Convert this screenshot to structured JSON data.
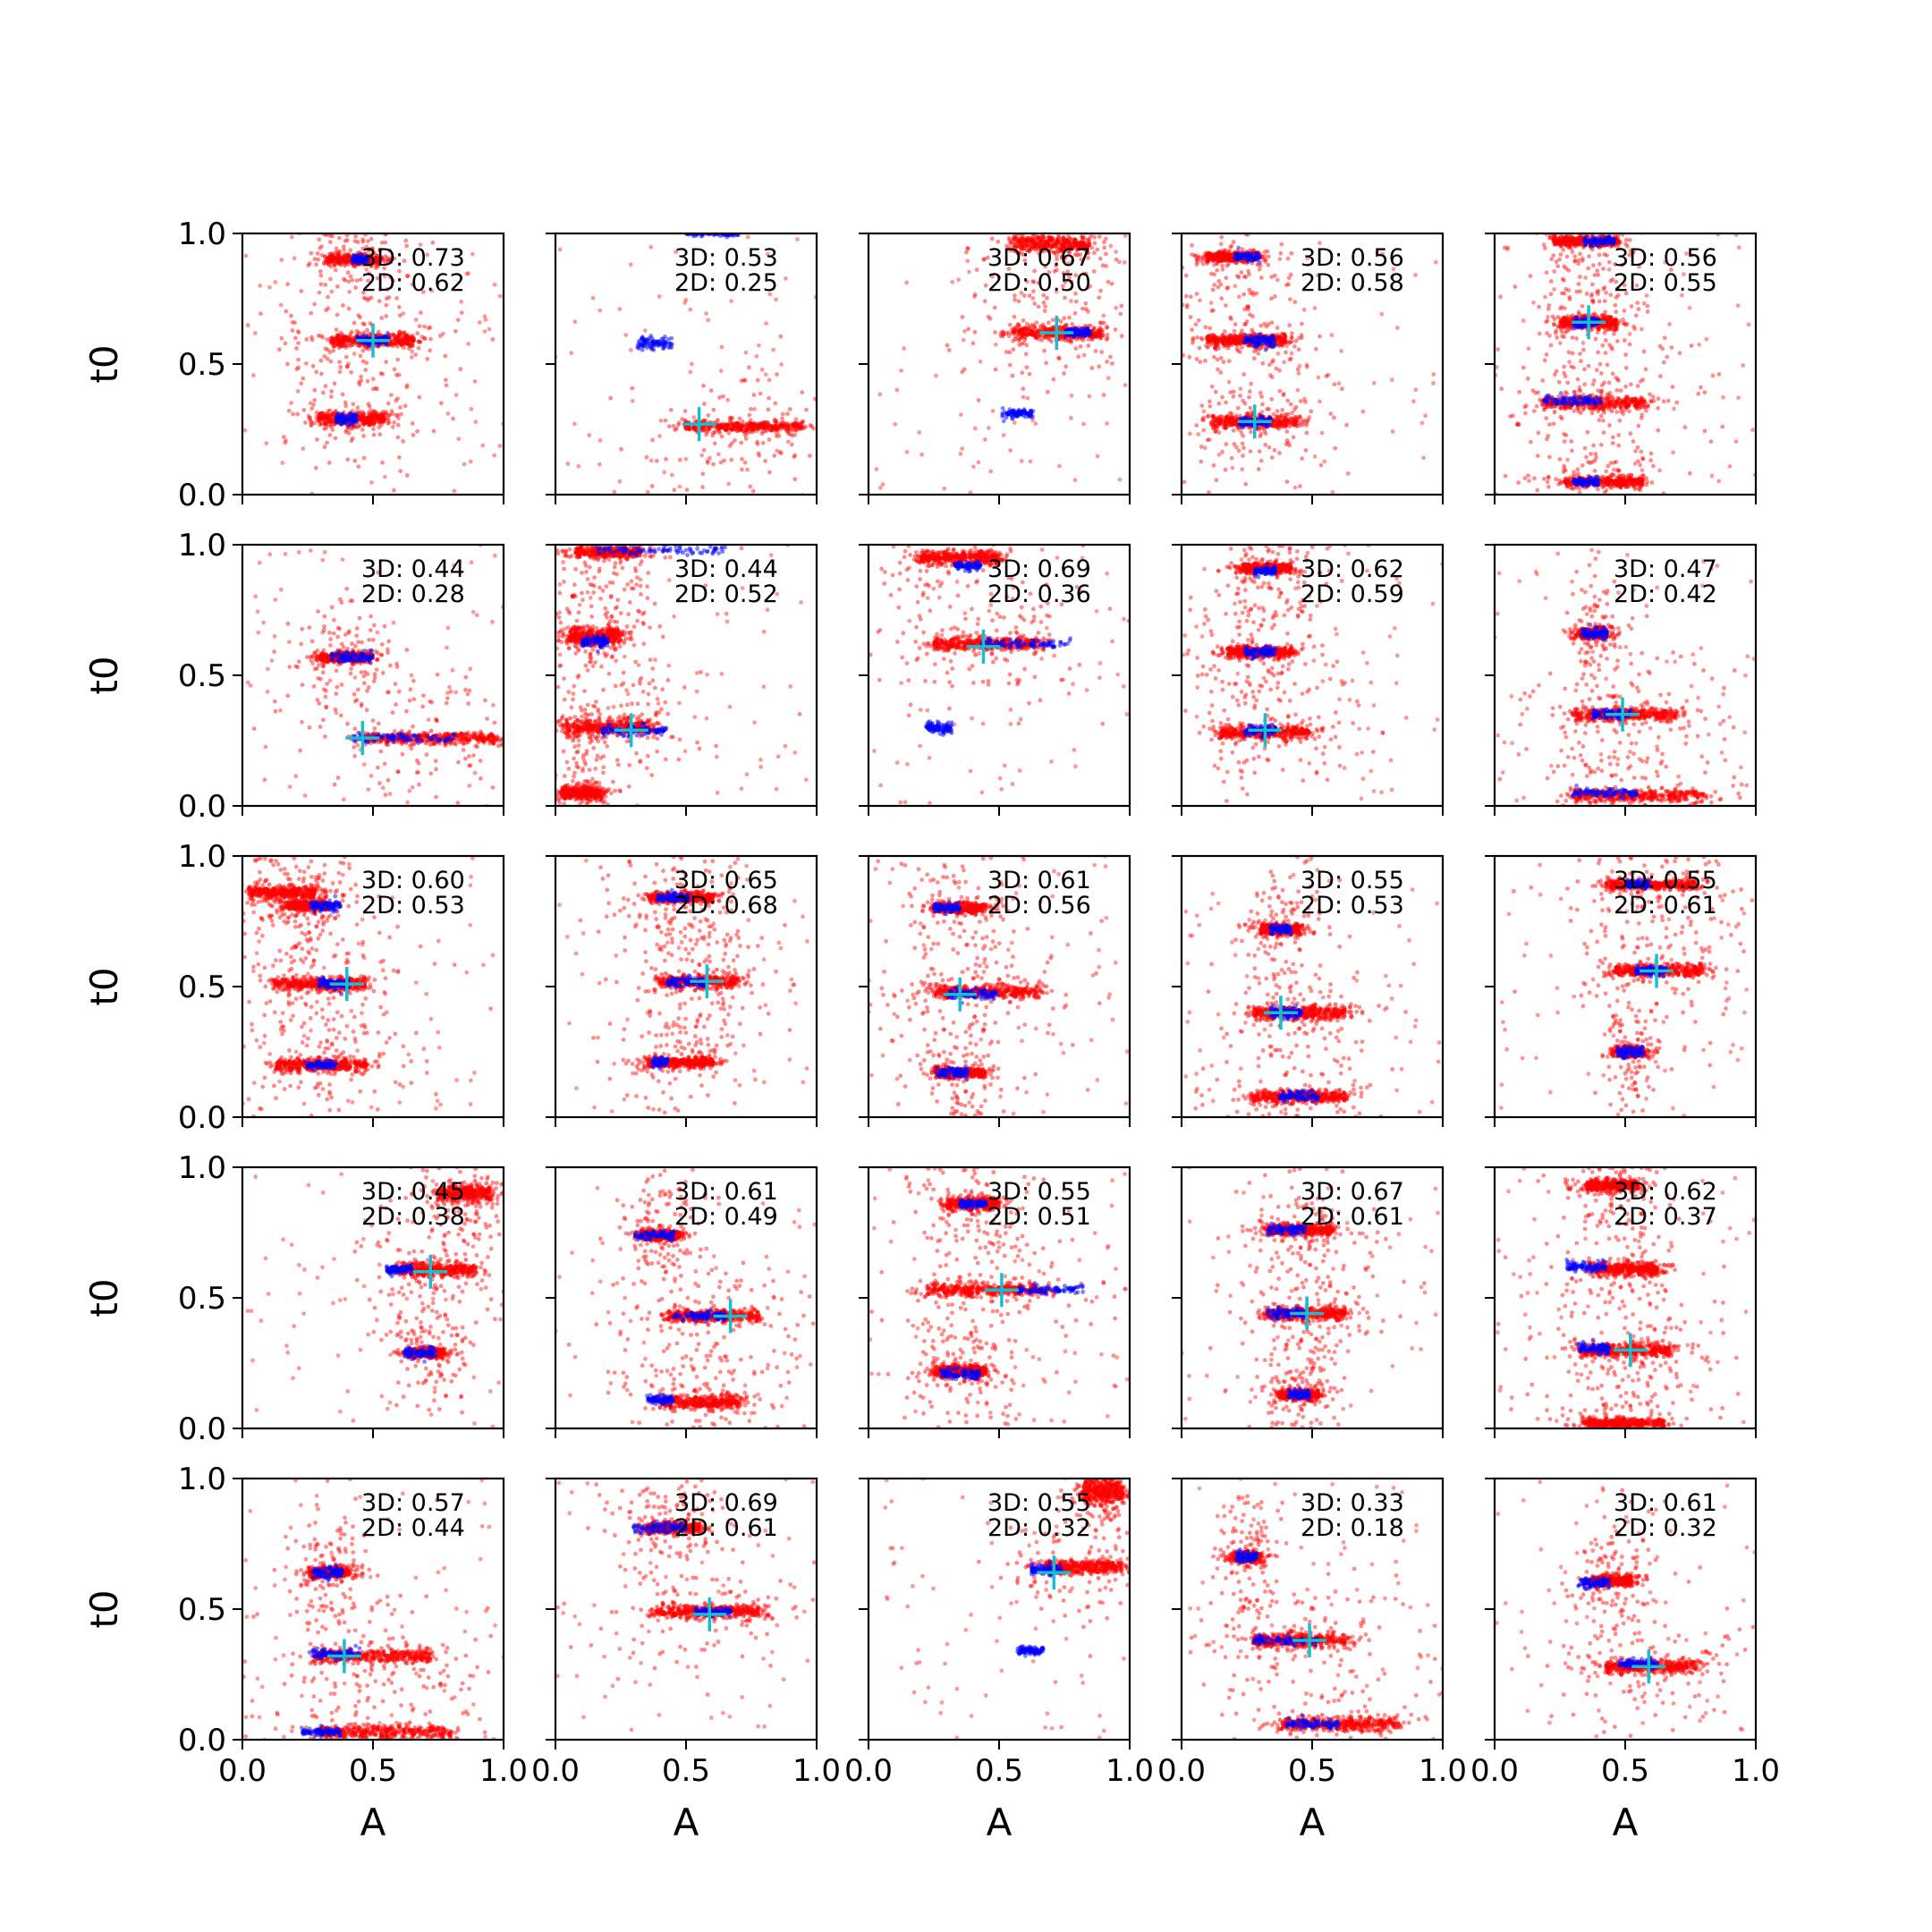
{
  "chart_data": {
    "type": "scatter",
    "grid": false,
    "rows": 5,
    "cols": 5,
    "xlim": [
      0,
      1
    ],
    "ylim": [
      0,
      1
    ],
    "xlabel": "A",
    "ylabel": "t0",
    "xticks": [
      "0.0",
      "0.5",
      "1.0"
    ],
    "yticks": [
      "0.0",
      "0.5",
      "1.0"
    ],
    "colors": {
      "samples": "#ff0000",
      "chain": "#0000ff",
      "truth": "#17becf"
    },
    "panels": [
      {
        "l3": "3D: 0.73",
        "l2": "2D: 0.62",
        "truth": [
          0.5,
          0.59
        ],
        "clusters": [
          [
            0.5,
            0.59,
            0.32,
            0.015
          ],
          [
            0.42,
            0.29,
            0.26,
            0.015
          ],
          [
            0.43,
            0.9,
            0.2,
            0.012
          ]
        ],
        "blue": [
          [
            0.5,
            0.59,
            0.12,
            0.01
          ],
          [
            0.4,
            0.29,
            0.08,
            0.01
          ],
          [
            0.45,
            0.9,
            0.06,
            0.008
          ]
        ]
      },
      {
        "l3": "3D: 0.53",
        "l2": "2D: 0.25",
        "truth": [
          0.55,
          0.27
        ],
        "clusters": [
          [
            0.72,
            0.26,
            0.45,
            0.012
          ]
        ],
        "blue": [
          [
            0.38,
            0.58,
            0.14,
            0.012
          ],
          [
            0.6,
            1.0,
            0.2,
            0.005
          ]
        ]
      },
      {
        "l3": "3D: 0.67",
        "l2": "2D: 0.50",
        "truth": [
          0.72,
          0.62
        ],
        "clusters": [
          [
            0.72,
            0.62,
            0.35,
            0.015
          ],
          [
            0.7,
            0.96,
            0.3,
            0.02
          ]
        ],
        "blue": [
          [
            0.57,
            0.31,
            0.12,
            0.008
          ],
          [
            0.8,
            0.62,
            0.1,
            0.008
          ]
        ]
      },
      {
        "l3": "3D: 0.56",
        "l2": "2D: 0.58",
        "truth": [
          0.28,
          0.28
        ],
        "clusters": [
          [
            0.28,
            0.28,
            0.32,
            0.015
          ],
          [
            0.25,
            0.59,
            0.3,
            0.015
          ],
          [
            0.2,
            0.91,
            0.2,
            0.012
          ]
        ],
        "blue": [
          [
            0.28,
            0.28,
            0.12,
            0.01
          ],
          [
            0.3,
            0.59,
            0.12,
            0.01
          ],
          [
            0.25,
            0.91,
            0.1,
            0.008
          ]
        ]
      },
      {
        "l3": "3D: 0.56",
        "l2": "2D: 0.55",
        "truth": [
          0.36,
          0.66
        ],
        "clusters": [
          [
            0.36,
            0.66,
            0.22,
            0.015
          ],
          [
            0.38,
            0.35,
            0.4,
            0.015
          ],
          [
            0.35,
            0.97,
            0.25,
            0.012
          ],
          [
            0.42,
            0.05,
            0.3,
            0.012
          ]
        ],
        "blue": [
          [
            0.35,
            0.66,
            0.1,
            0.01
          ],
          [
            0.3,
            0.36,
            0.22,
            0.01
          ],
          [
            0.4,
            0.97,
            0.12,
            0.008
          ],
          [
            0.35,
            0.05,
            0.1,
            0.008
          ]
        ]
      },
      {
        "l3": "3D: 0.44",
        "l2": "2D: 0.28",
        "truth": [
          0.46,
          0.26
        ],
        "clusters": [
          [
            0.72,
            0.26,
            0.5,
            0.012
          ],
          [
            0.4,
            0.57,
            0.2,
            0.012
          ]
        ],
        "blue": [
          [
            0.42,
            0.57,
            0.16,
            0.01
          ],
          [
            0.62,
            0.26,
            0.4,
            0.008
          ]
        ]
      },
      {
        "l3": "3D: 0.44",
        "l2": "2D: 0.52",
        "truth": [
          0.29,
          0.29
        ],
        "clusters": [
          [
            0.2,
            0.3,
            0.35,
            0.02
          ],
          [
            0.15,
            0.65,
            0.2,
            0.02
          ],
          [
            0.2,
            0.97,
            0.25,
            0.012
          ],
          [
            0.1,
            0.05,
            0.15,
            0.015
          ]
        ],
        "blue": [
          [
            0.3,
            0.29,
            0.25,
            0.012
          ],
          [
            0.15,
            0.63,
            0.1,
            0.012
          ],
          [
            0.4,
            0.98,
            0.5,
            0.01
          ]
        ]
      },
      {
        "l3": "3D: 0.69",
        "l2": "2D: 0.36",
        "truth": [
          0.44,
          0.61
        ],
        "clusters": [
          [
            0.45,
            0.62,
            0.4,
            0.015
          ],
          [
            0.35,
            0.95,
            0.3,
            0.015
          ]
        ],
        "blue": [
          [
            0.6,
            0.62,
            0.35,
            0.008
          ],
          [
            0.27,
            0.3,
            0.1,
            0.01
          ],
          [
            0.38,
            0.92,
            0.1,
            0.008
          ]
        ]
      },
      {
        "l3": "3D: 0.62",
        "l2": "2D: 0.59",
        "truth": [
          0.32,
          0.29
        ],
        "clusters": [
          [
            0.32,
            0.28,
            0.35,
            0.015
          ],
          [
            0.3,
            0.59,
            0.25,
            0.012
          ],
          [
            0.32,
            0.91,
            0.2,
            0.012
          ]
        ],
        "blue": [
          [
            0.3,
            0.29,
            0.12,
            0.01
          ],
          [
            0.3,
            0.59,
            0.12,
            0.01
          ],
          [
            0.32,
            0.9,
            0.08,
            0.008
          ]
        ]
      },
      {
        "l3": "3D: 0.47",
        "l2": "2D: 0.42",
        "truth": [
          0.49,
          0.35
        ],
        "clusters": [
          [
            0.5,
            0.35,
            0.4,
            0.015
          ],
          [
            0.55,
            0.04,
            0.5,
            0.015
          ],
          [
            0.38,
            0.66,
            0.1,
            0.012
          ]
        ],
        "blue": [
          [
            0.45,
            0.35,
            0.15,
            0.01
          ],
          [
            0.38,
            0.66,
            0.1,
            0.01
          ],
          [
            0.42,
            0.05,
            0.25,
            0.008
          ]
        ]
      },
      {
        "l3": "3D: 0.60",
        "l2": "2D: 0.53",
        "truth": [
          0.4,
          0.51
        ],
        "clusters": [
          [
            0.3,
            0.51,
            0.35,
            0.015
          ],
          [
            0.3,
            0.2,
            0.35,
            0.015
          ],
          [
            0.15,
            0.86,
            0.25,
            0.015
          ],
          [
            0.25,
            0.81,
            0.15,
            0.01
          ]
        ],
        "blue": [
          [
            0.35,
            0.51,
            0.12,
            0.01
          ],
          [
            0.32,
            0.81,
            0.12,
            0.01
          ],
          [
            0.3,
            0.2,
            0.12,
            0.008
          ]
        ]
      },
      {
        "l3": "3D: 0.65",
        "l2": "2D: 0.68",
        "truth": [
          0.58,
          0.52
        ],
        "clusters": [
          [
            0.55,
            0.52,
            0.3,
            0.015
          ],
          [
            0.48,
            0.21,
            0.25,
            0.012
          ],
          [
            0.48,
            0.84,
            0.25,
            0.012
          ]
        ],
        "blue": [
          [
            0.5,
            0.52,
            0.15,
            0.01
          ],
          [
            0.45,
            0.84,
            0.12,
            0.01
          ],
          [
            0.4,
            0.21,
            0.06,
            0.008
          ]
        ]
      },
      {
        "l3": "3D: 0.61",
        "l2": "2D: 0.56",
        "truth": [
          0.35,
          0.47
        ],
        "clusters": [
          [
            0.45,
            0.48,
            0.4,
            0.015
          ],
          [
            0.35,
            0.17,
            0.2,
            0.012
          ],
          [
            0.35,
            0.8,
            0.2,
            0.012
          ]
        ],
        "blue": [
          [
            0.4,
            0.47,
            0.2,
            0.01
          ],
          [
            0.32,
            0.17,
            0.12,
            0.01
          ],
          [
            0.3,
            0.8,
            0.1,
            0.008
          ]
        ]
      },
      {
        "l3": "3D: 0.55",
        "l2": "2D: 0.53",
        "truth": [
          0.38,
          0.4
        ],
        "clusters": [
          [
            0.45,
            0.4,
            0.35,
            0.015
          ],
          [
            0.45,
            0.08,
            0.35,
            0.015
          ],
          [
            0.38,
            0.72,
            0.15,
            0.012
          ]
        ],
        "blue": [
          [
            0.4,
            0.4,
            0.12,
            0.01
          ],
          [
            0.45,
            0.08,
            0.15,
            0.01
          ],
          [
            0.38,
            0.72,
            0.08,
            0.008
          ]
        ]
      },
      {
        "l3": "3D: 0.55",
        "l2": "2D: 0.61",
        "truth": [
          0.62,
          0.56
        ],
        "clusters": [
          [
            0.62,
            0.56,
            0.35,
            0.015
          ],
          [
            0.6,
            0.89,
            0.35,
            0.012
          ],
          [
            0.52,
            0.25,
            0.1,
            0.01
          ]
        ],
        "blue": [
          [
            0.6,
            0.56,
            0.12,
            0.01
          ],
          [
            0.52,
            0.25,
            0.1,
            0.01
          ],
          [
            0.55,
            0.89,
            0.08,
            0.008
          ]
        ]
      },
      {
        "l3": "3D: 0.45",
        "l2": "2D: 0.38",
        "truth": [
          0.72,
          0.6
        ],
        "clusters": [
          [
            0.75,
            0.61,
            0.3,
            0.015
          ],
          [
            0.85,
            0.9,
            0.2,
            0.02
          ],
          [
            0.7,
            0.29,
            0.15,
            0.01
          ]
        ],
        "blue": [
          [
            0.68,
            0.29,
            0.12,
            0.01
          ],
          [
            0.6,
            0.61,
            0.1,
            0.008
          ]
        ]
      },
      {
        "l3": "3D: 0.61",
        "l2": "2D: 0.49",
        "truth": [
          0.67,
          0.43
        ],
        "clusters": [
          [
            0.6,
            0.43,
            0.35,
            0.015
          ],
          [
            0.55,
            0.1,
            0.3,
            0.015
          ],
          [
            0.4,
            0.74,
            0.15,
            0.012
          ]
        ],
        "blue": [
          [
            0.38,
            0.74,
            0.15,
            0.01
          ],
          [
            0.55,
            0.43,
            0.2,
            0.008
          ],
          [
            0.4,
            0.11,
            0.1,
            0.008
          ]
        ]
      },
      {
        "l3": "3D: 0.55",
        "l2": "2D: 0.51",
        "truth": [
          0.51,
          0.53
        ],
        "clusters": [
          [
            0.45,
            0.53,
            0.45,
            0.015
          ],
          [
            0.35,
            0.22,
            0.2,
            0.015
          ],
          [
            0.4,
            0.86,
            0.2,
            0.015
          ]
        ],
        "blue": [
          [
            0.7,
            0.53,
            0.25,
            0.01
          ],
          [
            0.35,
            0.21,
            0.15,
            0.01
          ],
          [
            0.4,
            0.86,
            0.1,
            0.008
          ]
        ]
      },
      {
        "l3": "3D: 0.67",
        "l2": "2D: 0.61",
        "truth": [
          0.48,
          0.44
        ],
        "clusters": [
          [
            0.48,
            0.44,
            0.3,
            0.015
          ],
          [
            0.45,
            0.76,
            0.25,
            0.012
          ],
          [
            0.45,
            0.13,
            0.15,
            0.012
          ]
        ],
        "blue": [
          [
            0.4,
            0.44,
            0.15,
            0.01
          ],
          [
            0.4,
            0.76,
            0.15,
            0.01
          ],
          [
            0.45,
            0.13,
            0.08,
            0.008
          ]
        ]
      },
      {
        "l3": "3D: 0.62",
        "l2": "2D: 0.37",
        "truth": [
          0.52,
          0.3
        ],
        "clusters": [
          [
            0.5,
            0.3,
            0.35,
            0.015
          ],
          [
            0.5,
            0.61,
            0.25,
            0.015
          ],
          [
            0.5,
            0.02,
            0.3,
            0.012
          ],
          [
            0.45,
            0.93,
            0.2,
            0.015
          ]
        ],
        "blue": [
          [
            0.35,
            0.62,
            0.15,
            0.01
          ],
          [
            0.38,
            0.31,
            0.12,
            0.01
          ]
        ]
      },
      {
        "l3": "3D: 0.57",
        "l2": "2D: 0.44",
        "truth": [
          0.39,
          0.32
        ],
        "clusters": [
          [
            0.5,
            0.32,
            0.45,
            0.015
          ],
          [
            0.55,
            0.03,
            0.5,
            0.015
          ],
          [
            0.33,
            0.64,
            0.15,
            0.012
          ]
        ],
        "blue": [
          [
            0.35,
            0.33,
            0.2,
            0.01
          ],
          [
            0.33,
            0.64,
            0.12,
            0.01
          ],
          [
            0.3,
            0.03,
            0.15,
            0.008
          ]
        ]
      },
      {
        "l3": "3D: 0.69",
        "l2": "2D: 0.61",
        "truth": [
          0.59,
          0.48
        ],
        "clusters": [
          [
            0.58,
            0.49,
            0.4,
            0.015
          ],
          [
            0.45,
            0.81,
            0.2,
            0.012
          ]
        ],
        "blue": [
          [
            0.4,
            0.81,
            0.2,
            0.01
          ],
          [
            0.6,
            0.49,
            0.15,
            0.008
          ]
        ]
      },
      {
        "l3": "3D: 0.55",
        "l2": "2D: 0.32",
        "truth": [
          0.71,
          0.64
        ],
        "clusters": [
          [
            0.82,
            0.66,
            0.3,
            0.015
          ],
          [
            0.9,
            0.95,
            0.15,
            0.03
          ]
        ],
        "blue": [
          [
            0.68,
            0.65,
            0.12,
            0.01
          ],
          [
            0.62,
            0.34,
            0.1,
            0.008
          ]
        ]
      },
      {
        "l3": "3D: 0.33",
        "l2": "2D: 0.18",
        "truth": [
          0.49,
          0.38
        ],
        "clusters": [
          [
            0.45,
            0.38,
            0.35,
            0.015
          ],
          [
            0.6,
            0.06,
            0.45,
            0.015
          ],
          [
            0.25,
            0.7,
            0.1,
            0.01
          ]
        ],
        "blue": [
          [
            0.4,
            0.38,
            0.25,
            0.01
          ],
          [
            0.25,
            0.7,
            0.08,
            0.01
          ],
          [
            0.5,
            0.06,
            0.2,
            0.008
          ]
        ]
      },
      {
        "l3": "3D: 0.61",
        "l2": "2D: 0.32",
        "truth": [
          0.59,
          0.28
        ],
        "clusters": [
          [
            0.6,
            0.28,
            0.35,
            0.015
          ],
          [
            0.45,
            0.61,
            0.15,
            0.012
          ]
        ],
        "blue": [
          [
            0.38,
            0.6,
            0.12,
            0.01
          ],
          [
            0.55,
            0.29,
            0.15,
            0.008
          ]
        ]
      }
    ]
  }
}
